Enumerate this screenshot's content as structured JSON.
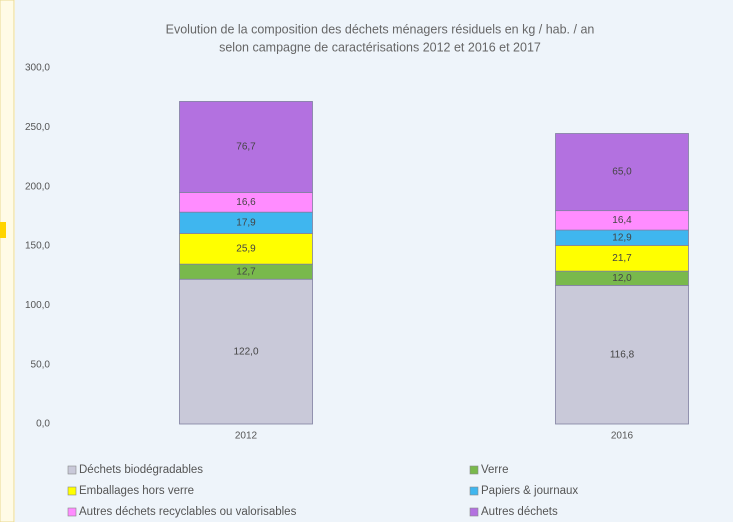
{
  "chart_data": {
    "type": "stacked_bar",
    "title": [
      "Evolution de la composition des déchets ménagers résiduels en kg / hab. / an",
      "selon campagne de caractérisations 2012 et 2016 et 2017"
    ],
    "categories": [
      "2012",
      "2016"
    ],
    "series": [
      {
        "name": "Déchets biodégradables",
        "color": "#c9c9d9",
        "values": [
          122.0,
          116.8
        ],
        "value_labels": [
          "122,0",
          "116,8"
        ]
      },
      {
        "name": "Verre",
        "color": "#79b94c",
        "values": [
          12.7,
          12.0
        ],
        "value_labels": [
          "12,7",
          "12,0"
        ]
      },
      {
        "name": "Emballages hors verre",
        "color": "#ffff00",
        "values": [
          25.9,
          21.7
        ],
        "value_labels": [
          "25,9",
          "21,7"
        ]
      },
      {
        "name": "Papiers & journaux",
        "color": "#3fb6ef",
        "values": [
          17.9,
          12.9
        ],
        "value_labels": [
          "17,9",
          "12,9"
        ]
      },
      {
        "name": "Autres déchets recyclables ou valorisables",
        "color": "#ff8cff",
        "values": [
          16.6,
          16.4
        ],
        "value_labels": [
          "16,6",
          "16,4"
        ]
      },
      {
        "name": "Autres déchets",
        "color": "#b371e0",
        "values": [
          76.7,
          65.0
        ],
        "value_labels": [
          "76,7",
          "65,0"
        ]
      }
    ],
    "ylim": [
      0,
      300
    ],
    "yticks": [
      {
        "value": 0,
        "label": "0,0"
      },
      {
        "value": 50,
        "label": "50,0"
      },
      {
        "value": 100,
        "label": "100,0"
      },
      {
        "value": 150,
        "label": "150,0"
      },
      {
        "value": 200,
        "label": "200,0"
      },
      {
        "value": 250,
        "label": "250,0"
      },
      {
        "value": 300,
        "label": "300,0"
      }
    ],
    "grid": false
  }
}
